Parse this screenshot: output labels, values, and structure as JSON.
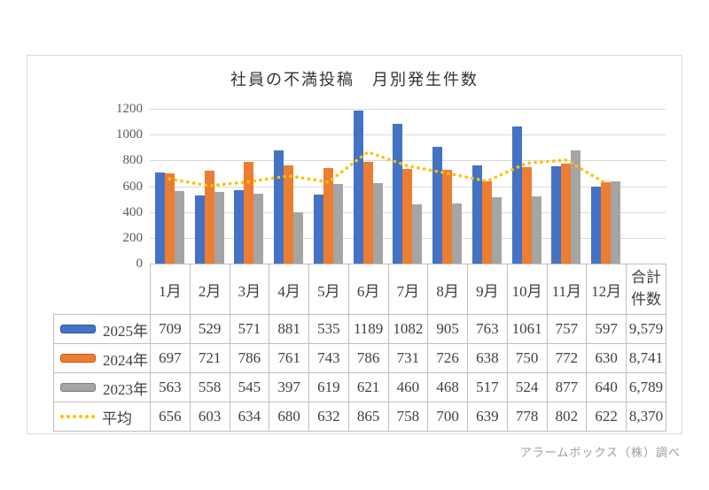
{
  "title": "社員の不満投稿　月別発生件数",
  "footer_credit": "アラームボックス（株）調べ",
  "colors": {
    "blue": "#4472C4",
    "orange": "#ED7D31",
    "gray": "#A5A5A5",
    "yellow": "#FFC000",
    "gridline": "#D9D9D9",
    "table_border": "#BFBFBF",
    "axis_text": "#595959",
    "cell_text": "#404040"
  },
  "y_axis": {
    "ticks": [
      0,
      200,
      400,
      600,
      800,
      1000,
      1200
    ],
    "max": 1200
  },
  "table": {
    "total_header_lines": [
      "合計",
      "件数"
    ]
  },
  "chart_data": {
    "type": "bar",
    "title": "社員の不満投稿　月別発生件数",
    "categories": [
      "1月",
      "2月",
      "3月",
      "4月",
      "5月",
      "6月",
      "7月",
      "8月",
      "9月",
      "10月",
      "11月",
      "12月"
    ],
    "xlabel": "",
    "ylabel": "",
    "ylim": [
      0,
      1200
    ],
    "grid": true,
    "legend_position": "table-rows-left",
    "total_column_label": "合計件数",
    "series": [
      {
        "name": "2025年",
        "kind": "bar",
        "color": "#4472C4",
        "swatch_border": "#2F5597",
        "values": [
          709,
          529,
          571,
          881,
          535,
          1189,
          1082,
          905,
          763,
          1061,
          757,
          597
        ],
        "total_display": "9,579"
      },
      {
        "name": "2024年",
        "kind": "bar",
        "color": "#ED7D31",
        "swatch_border": "#C55A11",
        "values": [
          697,
          721,
          786,
          761,
          743,
          786,
          731,
          726,
          638,
          750,
          772,
          630
        ],
        "total_display": "8,741"
      },
      {
        "name": "2023年",
        "kind": "bar",
        "color": "#A5A5A5",
        "swatch_border": "#7F7F7F",
        "values": [
          563,
          558,
          545,
          397,
          619,
          621,
          460,
          468,
          517,
          524,
          877,
          640
        ],
        "total_display": "6,789"
      },
      {
        "name": "平均",
        "kind": "dotted-line",
        "color": "#FFC000",
        "values": [
          656,
          603,
          634,
          680,
          632,
          865,
          758,
          700,
          639,
          778,
          802,
          622
        ],
        "total_display": "8,370"
      }
    ]
  }
}
